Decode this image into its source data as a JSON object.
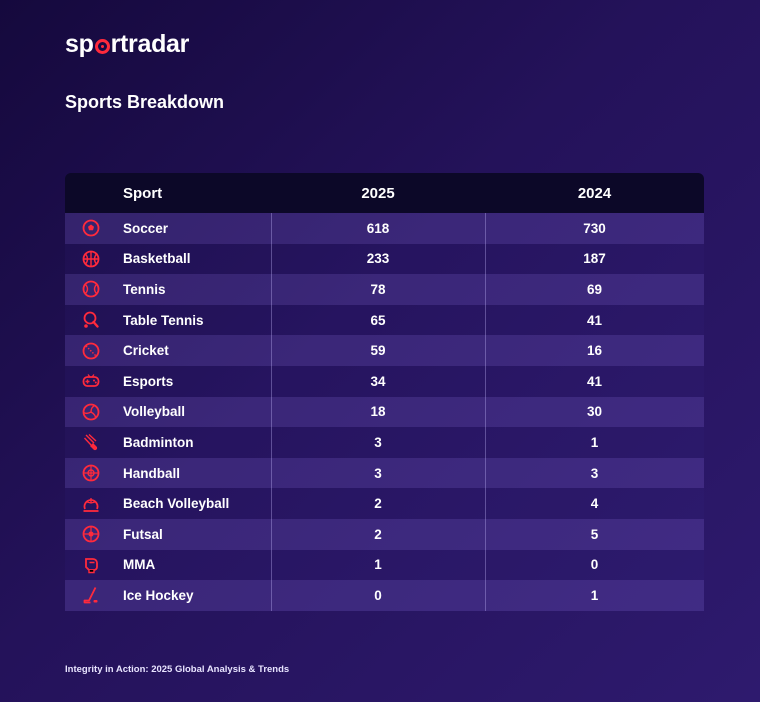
{
  "brand": {
    "prefix": "sp",
    "suffix": "rtradar"
  },
  "title": "Sports Breakdown",
  "footer": "Integrity in Action: 2025 Global Analysis & Trends",
  "colors": {
    "accent": "#ff2a3c",
    "header_bg": "#0c0828"
  },
  "chart_data": {
    "type": "table",
    "columns": [
      "Sport",
      "2025",
      "2024"
    ],
    "rows": [
      {
        "sport": "Soccer",
        "icon": "soccer-ball-icon",
        "y2025": 618,
        "y2024": 730
      },
      {
        "sport": "Basketball",
        "icon": "basketball-icon",
        "y2025": 233,
        "y2024": 187
      },
      {
        "sport": "Tennis",
        "icon": "tennis-ball-icon",
        "y2025": 78,
        "y2024": 69
      },
      {
        "sport": "Table Tennis",
        "icon": "table-tennis-icon",
        "y2025": 65,
        "y2024": 41
      },
      {
        "sport": "Cricket",
        "icon": "cricket-ball-icon",
        "y2025": 59,
        "y2024": 16
      },
      {
        "sport": "Esports",
        "icon": "gamepad-icon",
        "y2025": 34,
        "y2024": 41
      },
      {
        "sport": "Volleyball",
        "icon": "volleyball-icon",
        "y2025": 18,
        "y2024": 30
      },
      {
        "sport": "Badminton",
        "icon": "shuttlecock-icon",
        "y2025": 3,
        "y2024": 1
      },
      {
        "sport": "Handball",
        "icon": "handball-icon",
        "y2025": 3,
        "y2024": 3
      },
      {
        "sport": "Beach Volleyball",
        "icon": "beach-volleyball-icon",
        "y2025": 2,
        "y2024": 4
      },
      {
        "sport": "Futsal",
        "icon": "futsal-ball-icon",
        "y2025": 2,
        "y2024": 5
      },
      {
        "sport": "MMA",
        "icon": "mma-glove-icon",
        "y2025": 1,
        "y2024": 0
      },
      {
        "sport": "Ice Hockey",
        "icon": "hockey-stick-icon",
        "y2025": 0,
        "y2024": 1
      }
    ]
  }
}
